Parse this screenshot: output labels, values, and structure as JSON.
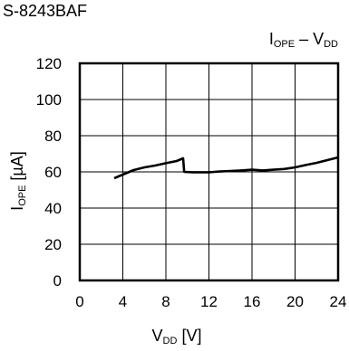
{
  "header": {
    "device": "S-8243BAF"
  },
  "chart_data": {
    "type": "line",
    "title": {
      "main": "I",
      "sub": "OPE",
      "dash": " – V",
      "sub2": "DD"
    },
    "xlabel": {
      "main": "V",
      "sub": "DD",
      "unit": " [V]"
    },
    "ylabel": {
      "main": "I",
      "sub": "OPE",
      "unit": " [µA]"
    },
    "xlim": [
      0,
      24
    ],
    "ylim": [
      0,
      120
    ],
    "xticks": [
      "0",
      "4",
      "8",
      "12",
      "16",
      "20",
      "24"
    ],
    "yticks": [
      "0",
      "20",
      "40",
      "60",
      "80",
      "100",
      "120"
    ],
    "grid": true,
    "series": [
      {
        "x": [
          3.2,
          4.0,
          5.0,
          6.0,
          7.0,
          8.0,
          9.0,
          9.6,
          9.7,
          10.5,
          11.0,
          12.0,
          12.5,
          13.0,
          14.0,
          15.0,
          16.0,
          17.0,
          18.0,
          19.0,
          20.0,
          21.0,
          22.0,
          23.0,
          24.0
        ],
        "y": [
          56.5,
          58.5,
          61.0,
          62.5,
          63.5,
          64.8,
          66.0,
          67.5,
          60.0,
          59.8,
          59.8,
          59.8,
          60.0,
          60.2,
          60.5,
          60.8,
          61.2,
          60.8,
          61.2,
          61.6,
          62.5,
          63.8,
          65.0,
          66.5,
          68.0
        ]
      }
    ]
  }
}
